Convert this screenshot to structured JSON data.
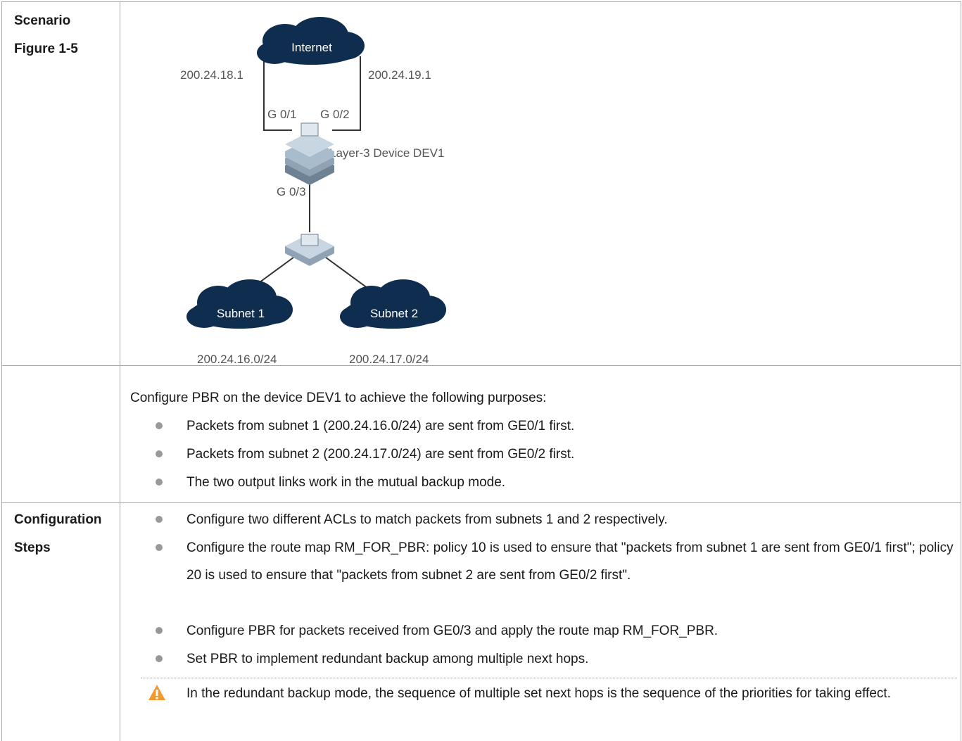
{
  "rows": [
    {
      "label": [
        "Scenario",
        "Figure 1-5"
      ],
      "figure": {
        "clouds": [
          "Internet",
          "Subnet 1",
          "Subnet 2"
        ],
        "addresses": [
          "200.24.18.1",
          "200.24.19.1",
          "200.24.16.0/24",
          "200.24.17.0/24"
        ],
        "ports": [
          "G 0/1",
          "G 0/2",
          "G 0/3"
        ],
        "device": "Layer-3 Device DEV1"
      }
    },
    {
      "intro": "Configure PBR on the device DEV1 to achieve the following purposes:",
      "bullets": [
        "Packets from subnet 1 (200.24.16.0/24) are sent from GE0/1 first.",
        "Packets from subnet 2 (200.24.17.0/24) are sent from GE0/2 first.",
        "The two output links work in the mutual backup mode."
      ]
    },
    {
      "label": [
        "Configuration",
        "Steps"
      ],
      "bullets": [
        "Configure two different ACLs to match packets from subnets 1 and 2 respectively.",
        "Configure the route map RM_FOR_PBR: policy 10 is used to ensure that \"packets from subnet 1 are sent from GE0/1 first\"; policy 20 is used to ensure that \"packets from subnet 2 are sent from GE0/2 first\".",
        "Configure PBR for packets received from GE0/3 and apply the route map RM_FOR_PBR.",
        "Set PBR to implement redundant backup among multiple next hops."
      ],
      "note": "In the redundant backup mode, the sequence of multiple set next hops is the sequence of the priorities for taking effect."
    }
  ]
}
